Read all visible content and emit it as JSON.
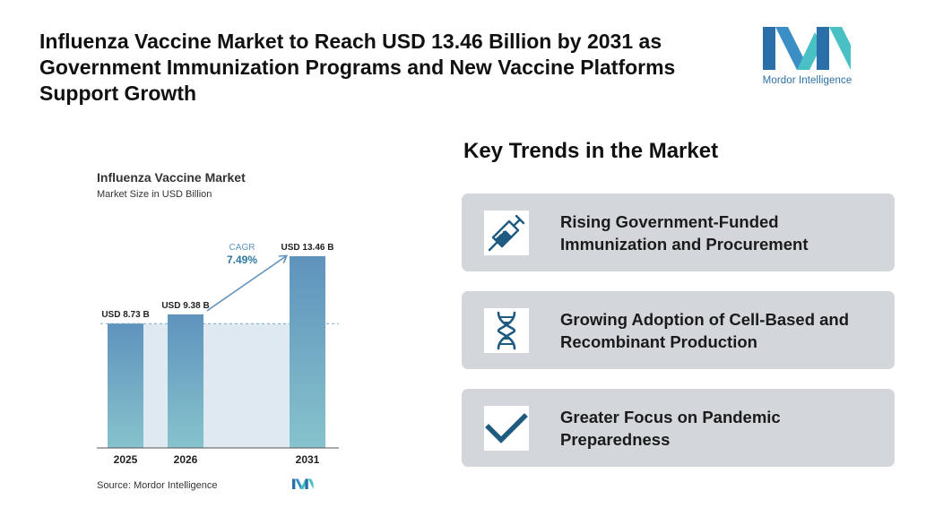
{
  "headline": "Influenza Vaccine Market to Reach USD 13.46 Billion by 2031 as Government Immunization Programs and New Vaccine Platforms Support Growth",
  "logo": {
    "text": "Mordor Intelligence"
  },
  "chart_data": {
    "type": "bar",
    "title": "Influenza Vaccine Market",
    "subtitle": "Market Size in USD Billion",
    "categories": [
      "2025",
      "2026",
      "2031"
    ],
    "values": [
      8.73,
      9.38,
      13.46
    ],
    "value_labels": [
      "USD 8.73 B",
      "USD 9.38 B",
      "USD 13.46 B"
    ],
    "ylim": [
      0,
      13.46
    ],
    "cagr_label": "CAGR",
    "cagr_value": "7.49%",
    "source": "Source:  Mordor Intelligence",
    "grid": false,
    "legend": "none"
  },
  "trends": {
    "heading": "Key Trends in the Market",
    "items": [
      {
        "icon": "syringe-icon",
        "label": "Rising Government-Funded Immunization and Procurement"
      },
      {
        "icon": "dna-icon",
        "label": "Growing Adoption of Cell-Based and Recombinant Production"
      },
      {
        "icon": "checkmark-icon",
        "label": "Greater Focus on Pandemic Preparedness"
      }
    ]
  },
  "colors": {
    "bar_top": "#5f93bd",
    "bar_bottom": "#86c3cc",
    "band": "#dfe9f1",
    "accent": "#2e78a8",
    "card": "#d3d6da",
    "icon": "#1f5a80",
    "logo_dark": "#2a6fa8",
    "logo_light": "#49c0c4"
  }
}
